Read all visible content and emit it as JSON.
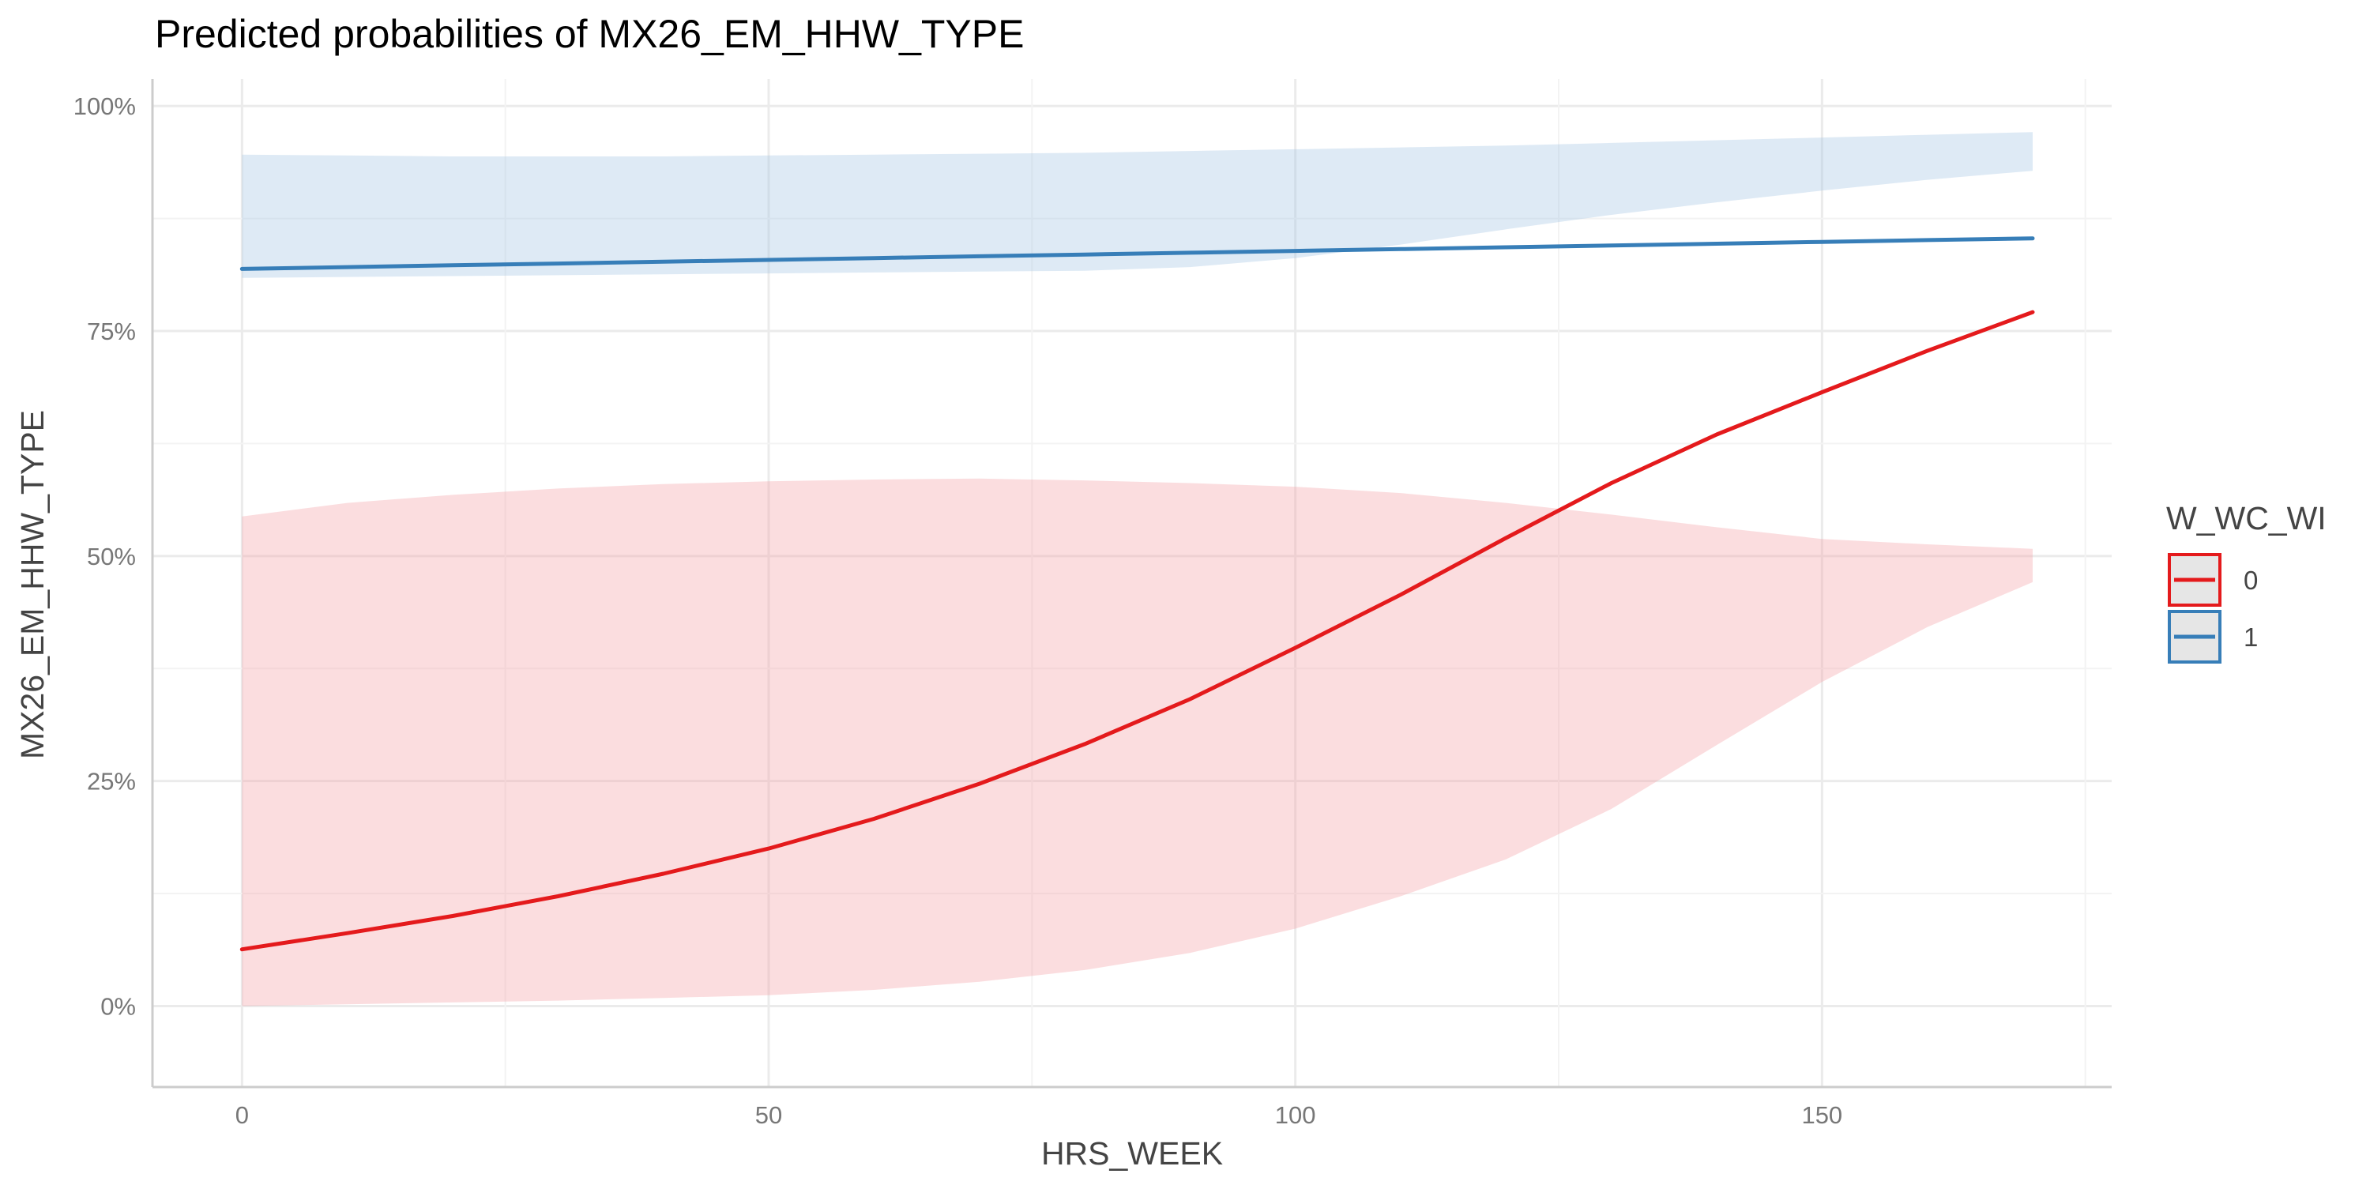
{
  "chart_data": {
    "type": "line",
    "title": "Predicted probabilities of MX26_EM_HHW_TYPE",
    "xlabel": "HRS_WEEK",
    "ylabel": "MX26_EM_HHW_TYPE",
    "xlim": [
      -8.5,
      177.5
    ],
    "ylim": [
      -0.09,
      1.03
    ],
    "x_ticks": [
      0,
      50,
      100,
      150
    ],
    "x_tick_labels": [
      "0",
      "50",
      "100",
      "150"
    ],
    "y_ticks": [
      0,
      0.25,
      0.5,
      0.75,
      1.0
    ],
    "y_tick_labels": [
      "0%",
      "25%",
      "50%",
      "75%",
      "100%"
    ],
    "grid": true,
    "legend": {
      "title": "W_WC_WI",
      "position": "right"
    },
    "series": [
      {
        "name": "0",
        "color": "#e41a1c",
        "band_color": "#f4a6ab",
        "x": [
          0,
          10,
          20,
          30,
          40,
          50,
          60,
          70,
          80,
          90,
          100,
          110,
          120,
          130,
          140,
          150,
          160,
          170
        ],
        "y": [
          0.063,
          0.081,
          0.1,
          0.122,
          0.147,
          0.175,
          0.208,
          0.247,
          0.291,
          0.341,
          0.398,
          0.457,
          0.52,
          0.581,
          0.635,
          0.682,
          0.728,
          0.771
        ],
        "lower": [
          0.0,
          0.002,
          0.004,
          0.006,
          0.009,
          0.012,
          0.018,
          0.027,
          0.04,
          0.059,
          0.086,
          0.122,
          0.163,
          0.219,
          0.29,
          0.36,
          0.421,
          0.471
        ],
        "upper": [
          0.544,
          0.559,
          0.568,
          0.575,
          0.58,
          0.583,
          0.585,
          0.586,
          0.584,
          0.581,
          0.577,
          0.57,
          0.559,
          0.546,
          0.532,
          0.519,
          0.513,
          0.508
        ]
      },
      {
        "name": "1",
        "color": "#377eb8",
        "band_color": "#a9c8e4",
        "x": [
          0,
          10,
          20,
          30,
          40,
          50,
          60,
          70,
          80,
          90,
          100,
          110,
          120,
          130,
          140,
          150,
          160,
          170
        ],
        "y": [
          0.819,
          0.821,
          0.823,
          0.825,
          0.827,
          0.829,
          0.831,
          0.833,
          0.835,
          0.837,
          0.839,
          0.841,
          0.843,
          0.845,
          0.847,
          0.849,
          0.851,
          0.853
        ],
        "lower": [
          0.809,
          0.81,
          0.811,
          0.812,
          0.813,
          0.814,
          0.815,
          0.816,
          0.817,
          0.821,
          0.831,
          0.846,
          0.863,
          0.879,
          0.893,
          0.906,
          0.918,
          0.928
        ],
        "upper": [
          0.946,
          0.945,
          0.944,
          0.944,
          0.944,
          0.945,
          0.946,
          0.947,
          0.948,
          0.95,
          0.952,
          0.954,
          0.956,
          0.959,
          0.962,
          0.965,
          0.968,
          0.971
        ]
      }
    ]
  }
}
